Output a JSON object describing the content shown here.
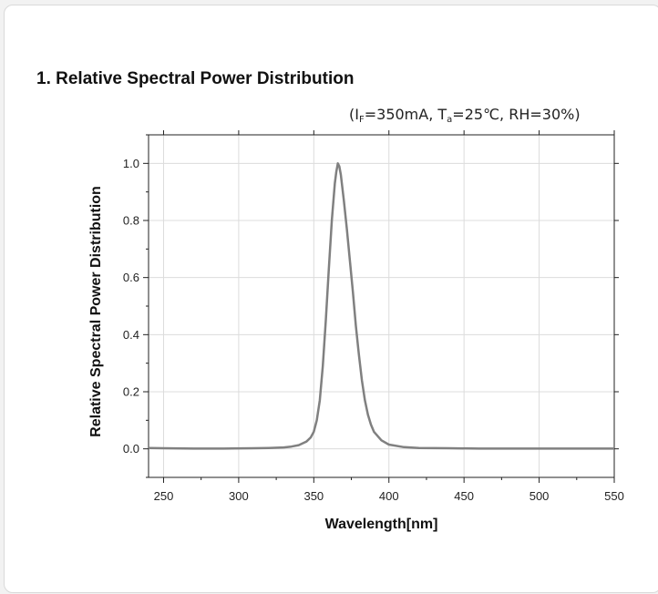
{
  "section": {
    "heading": "1. Relative Spectral Power Distribution"
  },
  "conditions": {
    "open": "(I",
    "if_sub": "F",
    "if_value": "=350mA, T",
    "ta_sub": "a",
    "ta_value": "=25℃, RH=30%)"
  },
  "chart_data": {
    "type": "line",
    "title": "",
    "xlabel": "Wavelength[nm]",
    "ylabel": "Relative Spectral Power Distribution",
    "xlim": [
      240,
      550
    ],
    "ylim": [
      -0.1,
      1.1
    ],
    "xticks": [
      250,
      300,
      350,
      400,
      450,
      500,
      550
    ],
    "yticks": [
      0.0,
      0.2,
      0.4,
      0.6,
      0.8,
      1.0
    ],
    "ytick_labels": [
      "0.0",
      "0.2",
      "0.4",
      "0.6",
      "0.8",
      "1.0"
    ],
    "grid": true,
    "line_color": "#808080",
    "series": [
      {
        "x": [
          240,
          250,
          270,
          290,
          310,
          320,
          330,
          335,
          340,
          345,
          348,
          350,
          352,
          354,
          356,
          358,
          360,
          362,
          364,
          365,
          366,
          367,
          368,
          370,
          372,
          374,
          376,
          378,
          380,
          382,
          384,
          386,
          388,
          390,
          395,
          400,
          410,
          420,
          440,
          460,
          480,
          500,
          520,
          550
        ],
        "y": [
          0.003,
          0.002,
          0.001,
          0.001,
          0.002,
          0.003,
          0.005,
          0.008,
          0.013,
          0.025,
          0.04,
          0.06,
          0.1,
          0.17,
          0.29,
          0.45,
          0.63,
          0.8,
          0.93,
          0.97,
          1.0,
          0.99,
          0.96,
          0.87,
          0.77,
          0.66,
          0.55,
          0.43,
          0.33,
          0.24,
          0.17,
          0.12,
          0.085,
          0.06,
          0.03,
          0.015,
          0.006,
          0.003,
          0.002,
          0.001,
          0.001,
          0.001,
          0.001,
          0.001
        ]
      }
    ]
  }
}
